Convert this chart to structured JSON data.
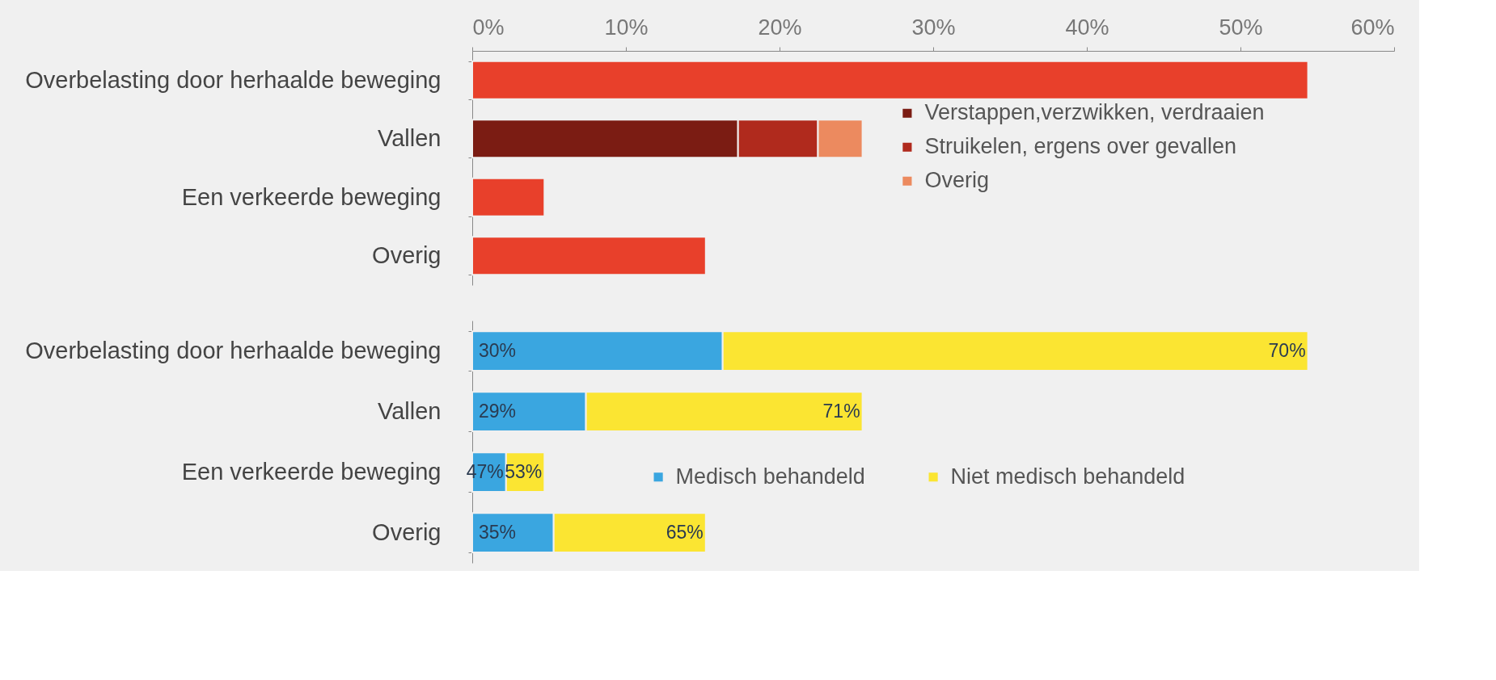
{
  "chart_data": [
    {
      "type": "bar",
      "orientation": "horizontal",
      "stacked": true,
      "legend": "right",
      "grid": false,
      "categories": [
        "Overbelasting door herhaalde beweging",
        "Vallen",
        "Een verkeerde beweging",
        "Overig"
      ],
      "xlim": [
        0,
        60
      ],
      "xticks": [
        {
          "value": 0,
          "label": "0%"
        },
        {
          "value": 10,
          "label": "10%"
        },
        {
          "value": 20,
          "label": "20%"
        },
        {
          "value": 30,
          "label": "30%"
        },
        {
          "value": 40,
          "label": "40%"
        },
        {
          "value": 50,
          "label": "50%"
        },
        {
          "value": 60,
          "label": "60%"
        }
      ],
      "series": [
        {
          "color": "#e8402b",
          "values": [
            54.4,
            null,
            4.7,
            15.2
          ]
        },
        {
          "name": "Verstappen,verzwikken, verdraaien",
          "color": "#7b1c13",
          "values": [
            null,
            17.3,
            null,
            null
          ]
        },
        {
          "name": "Struikelen, ergens over gevallen",
          "color": "#b02a1d",
          "values": [
            null,
            5.2,
            null,
            null
          ]
        },
        {
          "name": "Overig",
          "color": "#ec8a5f",
          "values": [
            null,
            2.9,
            null,
            null
          ]
        }
      ]
    },
    {
      "type": "bar",
      "orientation": "horizontal",
      "stacked": true,
      "legend": "bottom",
      "grid": false,
      "tick_labels": "y",
      "categories": [
        "Overbelasting door herhaalde beweging",
        "Vallen",
        "Een verkeerde beweging",
        "Overig"
      ],
      "xlim": [
        0,
        60
      ],
      "series": [
        {
          "name": "Medisch behandeld",
          "color": "#3aa6e0",
          "values": [
            16.3,
            7.4,
            2.2,
            5.3
          ]
        },
        {
          "name": "Niet medisch behandeld",
          "color": "#fbe532",
          "values": [
            38.1,
            18.0,
            2.5,
            9.9
          ]
        }
      ],
      "annotations": [
        {
          "text": "30%",
          "x": 0,
          "y": "Overbelasting door herhaalde beweging"
        },
        {
          "text": "70%",
          "x": 54.4,
          "y": "Overbelasting door herhaalde beweging"
        },
        {
          "text": "29%",
          "x": 0,
          "y": "Vallen"
        },
        {
          "text": "71%",
          "x": 25.4,
          "y": "Vallen"
        },
        {
          "text": "47%",
          "x": 2.2,
          "y": "Een verkeerde beweging"
        },
        {
          "text": "53%",
          "x": 4.7,
          "y": "Een verkeerde beweging"
        },
        {
          "text": "35%",
          "x": 0,
          "y": "Overig"
        },
        {
          "text": "65%",
          "x": 15.2,
          "y": "Overig"
        }
      ]
    }
  ]
}
